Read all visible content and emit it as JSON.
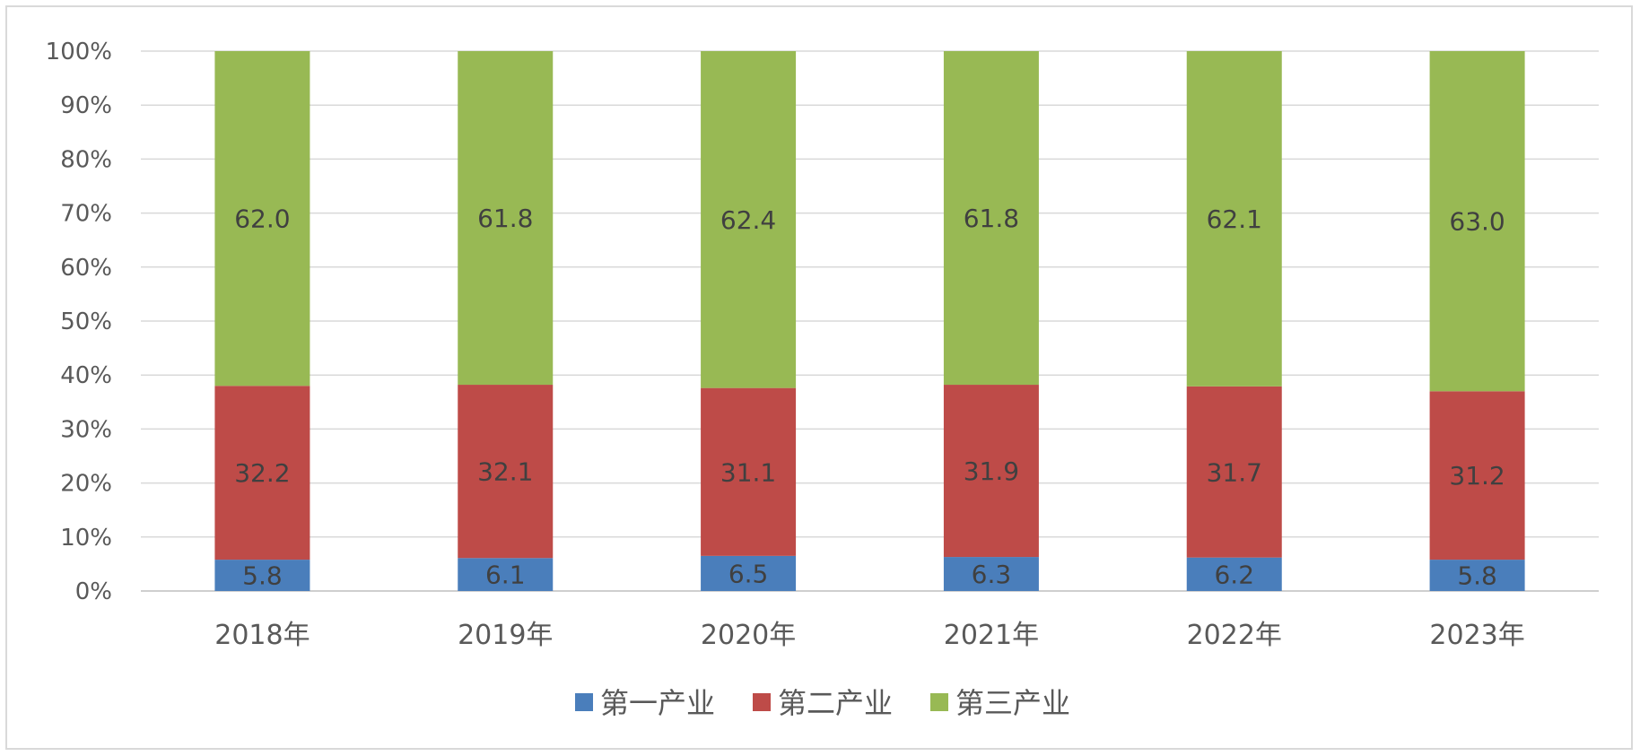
{
  "chart_data": {
    "type": "bar",
    "stacked": "percent",
    "categories": [
      "2018年",
      "2019年",
      "2020年",
      "2021年",
      "2022年",
      "2023年"
    ],
    "series": [
      {
        "name": "第一产业",
        "color": "#4a7ebb",
        "values": [
          5.8,
          6.1,
          6.5,
          6.3,
          6.2,
          5.8
        ]
      },
      {
        "name": "第二产业",
        "color": "#be4b48",
        "values": [
          32.2,
          32.1,
          31.1,
          31.9,
          31.7,
          31.2
        ]
      },
      {
        "name": "第三产业",
        "color": "#98b954",
        "values": [
          62.0,
          61.8,
          62.4,
          61.8,
          62.1,
          63.0
        ]
      }
    ],
    "y_ticks": [
      "0%",
      "10%",
      "20%",
      "30%",
      "40%",
      "50%",
      "60%",
      "70%",
      "80%",
      "90%",
      "100%"
    ],
    "ylim": [
      0,
      100
    ],
    "grid": true,
    "legend_position": "bottom"
  }
}
